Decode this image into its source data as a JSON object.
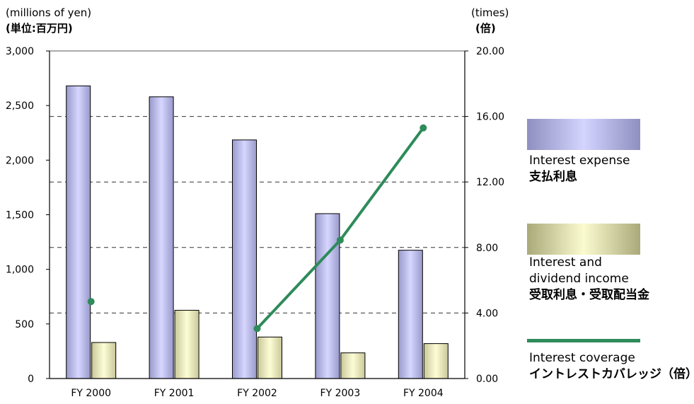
{
  "chart_data": {
    "type": "bar",
    "categories": [
      "FY 2000",
      "FY 2001",
      "FY 2002",
      "FY 2003",
      "FY 2004"
    ],
    "series": [
      {
        "name": "Interest expense 支払利息",
        "axis": "left",
        "kind": "bar",
        "values": [
          2680,
          2580,
          2185,
          1510,
          1175
        ],
        "color": "#c8c8f5"
      },
      {
        "name": "Interest and dividend income 受取利息・受取配当金",
        "axis": "left",
        "kind": "bar",
        "values": [
          330,
          625,
          380,
          235,
          320
        ],
        "color": "#f2f2c2"
      },
      {
        "name": "Interest coverage イントレストカバレッジ（倍）",
        "axis": "right",
        "kind": "line",
        "values": [
          4.7,
          null,
          3.05,
          8.45,
          15.3
        ],
        "color": "#2e8b5a"
      }
    ],
    "left_axis": {
      "unit_en": "(millions of yen)",
      "unit_jp": "(単位:百万円)",
      "ylim": [
        0,
        3000
      ],
      "ticks": [
        "0",
        "500",
        "1,000",
        "1,500",
        "2,000",
        "2,500",
        "3,000"
      ],
      "tick_values": [
        0,
        500,
        1000,
        1500,
        2000,
        2500,
        3000
      ]
    },
    "right_axis": {
      "unit_en": "(times)",
      "unit_jp": "(倍)",
      "ylim": [
        0,
        20
      ],
      "ticks": [
        "0.00",
        "4.00",
        "8.00",
        "12.00",
        "16.00",
        "20.00"
      ],
      "tick_values": [
        0,
        4,
        8,
        12,
        16,
        20
      ]
    },
    "grid": "dashed horizontal",
    "legend_position": "right"
  },
  "legend": {
    "interest_expense": {
      "en": "Interest expense",
      "jp": "支払利息"
    },
    "interest_income": {
      "en1": "Interest and",
      "en2": "dividend income",
      "jp": "受取利息・受取配当金"
    },
    "coverage": {
      "en": "Interest coverage",
      "jp": "イントレストカバレッジ（倍）"
    }
  },
  "colors": {
    "expense_dark": "#8f8fc0",
    "expense_light": "#d4d4ff",
    "income_dark": "#aaa97a",
    "income_light": "#fbfbd0",
    "coverage": "#2e8b5a"
  }
}
